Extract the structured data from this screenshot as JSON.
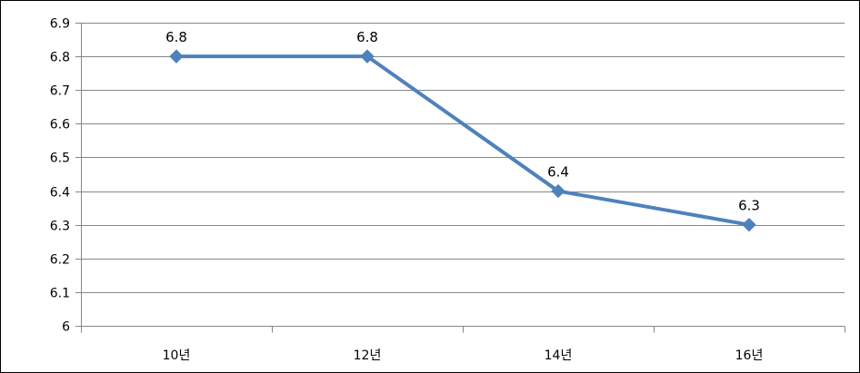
{
  "chart_data": {
    "type": "line",
    "title": "",
    "xlabel": "",
    "ylabel": "",
    "categories": [
      "10년",
      "12년",
      "14년",
      "16년"
    ],
    "series": [
      {
        "values": [
          6.8,
          6.8,
          6.4,
          6.3
        ],
        "data_labels": [
          "6.8",
          "6.8",
          "6.4",
          "6.3"
        ],
        "color": "#4F81BD",
        "marker": "diamond"
      }
    ],
    "ylim": [
      6,
      6.9
    ],
    "yticks": [
      6,
      6.1,
      6.2,
      6.3,
      6.4,
      6.5,
      6.6,
      6.7,
      6.8,
      6.9
    ],
    "ytick_labels": [
      "6",
      "6.1",
      "6.2",
      "6.3",
      "6.4",
      "6.5",
      "6.6",
      "6.7",
      "6.8",
      "6.9"
    ],
    "grid": true,
    "legend": "none",
    "gridline_color": "#868686",
    "axis_color": "#868686"
  }
}
